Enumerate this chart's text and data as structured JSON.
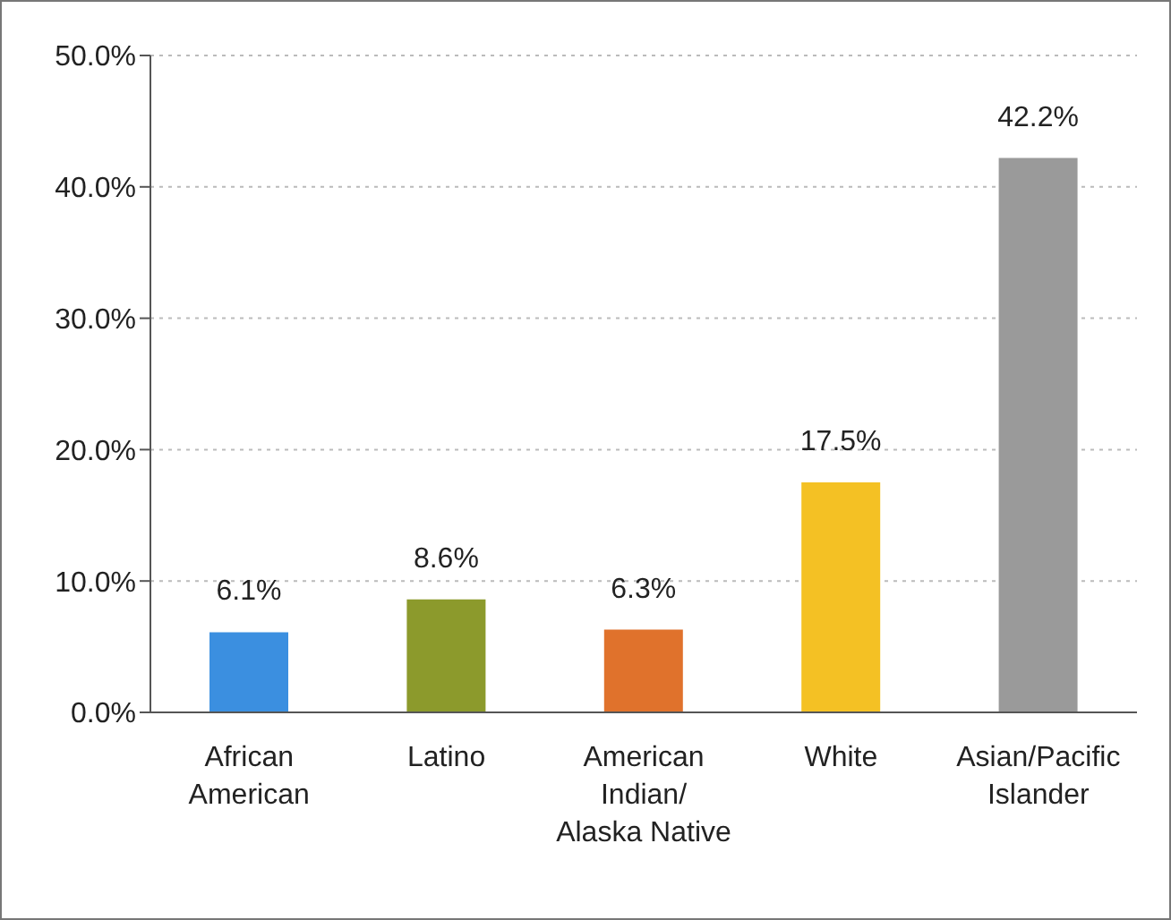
{
  "chart_data": {
    "type": "bar",
    "categories": [
      "African\nAmerican",
      "Latino",
      "American\nIndian/\nAlaska Native",
      "White",
      "Asian/Pacific\nIslander"
    ],
    "values": [
      6.1,
      8.6,
      6.3,
      17.5,
      42.2
    ],
    "colors": [
      "#3b8fe0",
      "#8c9a2c",
      "#e0722c",
      "#f4c124",
      "#9a9a9a"
    ],
    "value_labels": [
      "6.1%",
      "8.6%",
      "6.3%",
      "17.5%",
      "42.2%"
    ],
    "ylim": [
      0,
      50
    ],
    "yticks": [
      {
        "value": 0,
        "label": "0.0%"
      },
      {
        "value": 10,
        "label": "10.0%"
      },
      {
        "value": 20,
        "label": "20.0%"
      },
      {
        "value": 30,
        "label": "30.0%"
      },
      {
        "value": 40,
        "label": "40.0%"
      },
      {
        "value": 50,
        "label": "50.0%"
      }
    ],
    "grid": "y",
    "legend": false
  }
}
